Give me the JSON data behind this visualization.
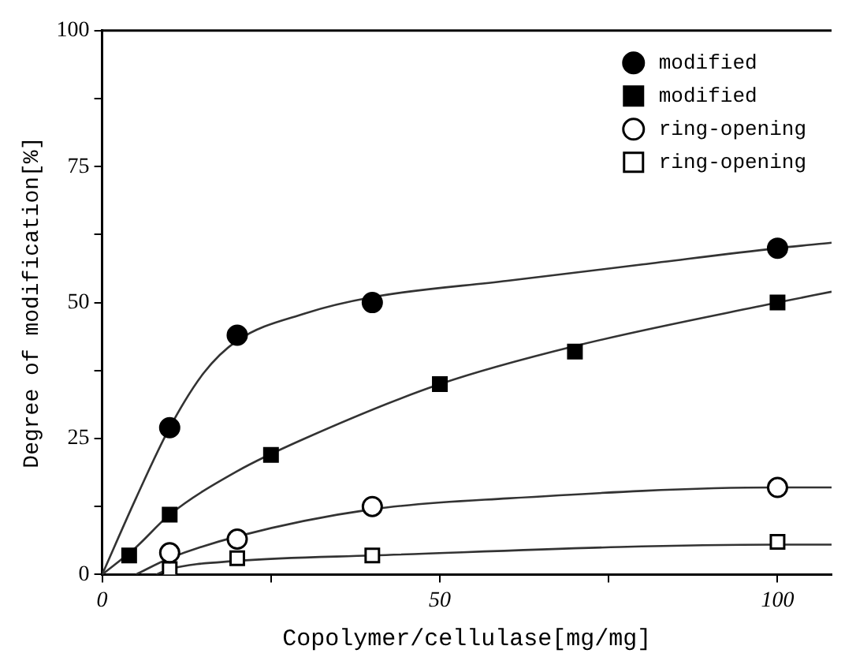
{
  "chart_data": {
    "type": "scatter",
    "xlabel": "Copolymer/cellulase[mg/mg]",
    "ylabel": "Degree of modification[%]",
    "xlim": [
      0,
      108
    ],
    "xticks": [
      0,
      {
        "value": 25,
        "label": null
      },
      50,
      {
        "value": 75,
        "label": null
      },
      100
    ],
    "ylim": [
      0,
      100
    ],
    "yticks": [
      0,
      {
        "value": 12.5,
        "label": null
      },
      25,
      {
        "value": 37.5,
        "label": null
      },
      50,
      {
        "value": 62.5,
        "label": null
      },
      75,
      {
        "value": 87.5,
        "label": null
      },
      100
    ],
    "grid": false,
    "legend": "top right",
    "series": [
      {
        "name": "modified",
        "marker": "circle",
        "color": "#000000",
        "x": [
          10,
          20,
          40,
          100
        ],
        "values": [
          27,
          44,
          50,
          60
        ]
      },
      {
        "name": "modified",
        "marker": "square",
        "color": "#000000",
        "x": [
          4,
          10,
          25,
          50,
          70,
          100
        ],
        "values": [
          3.5,
          11,
          22,
          35,
          41,
          50
        ]
      },
      {
        "name": "ring-opening",
        "marker": "circle",
        "color": "#000000",
        "x": [
          10,
          20,
          40,
          100
        ],
        "values": [
          4,
          6.5,
          12.5,
          16
        ]
      },
      {
        "name": "ring-opening",
        "marker": "square",
        "color": "#000000",
        "x": [
          10,
          20,
          40,
          100
        ],
        "values": [
          1,
          3,
          3.5,
          6
        ]
      },
      {
        "type": "line",
        "marker": "none",
        "color": "#333333",
        "x": [
          0,
          5,
          10,
          15,
          20,
          30,
          40,
          60,
          80,
          100,
          108
        ],
        "values": [
          0,
          14,
          27,
          37,
          43,
          48,
          51,
          54,
          57,
          60,
          61
        ]
      },
      {
        "type": "line",
        "marker": "none",
        "color": "#333333",
        "x": [
          0,
          5,
          10,
          20,
          30,
          50,
          70,
          100,
          108
        ],
        "values": [
          0,
          5,
          11,
          19,
          25,
          35,
          42,
          50,
          52
        ]
      },
      {
        "type": "line",
        "marker": "none",
        "color": "#333333",
        "x": [
          5,
          10,
          20,
          40,
          60,
          100,
          108
        ],
        "values": [
          0,
          3,
          7,
          12,
          14,
          16,
          16
        ]
      },
      {
        "type": "line",
        "marker": "none",
        "color": "#333333",
        "x": [
          8,
          10,
          20,
          40,
          100,
          108
        ],
        "values": [
          0,
          1,
          2.5,
          3.5,
          5.5,
          5.5
        ]
      }
    ]
  }
}
